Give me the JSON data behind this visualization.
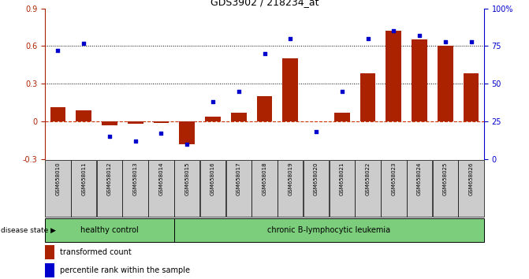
{
  "title": "GDS3902 / 218234_at",
  "samples": [
    "GSM658010",
    "GSM658011",
    "GSM658012",
    "GSM658013",
    "GSM658014",
    "GSM658015",
    "GSM658016",
    "GSM658017",
    "GSM658018",
    "GSM658019",
    "GSM658020",
    "GSM658021",
    "GSM658022",
    "GSM658023",
    "GSM658024",
    "GSM658025",
    "GSM658026"
  ],
  "bar_values": [
    0.11,
    0.09,
    -0.03,
    -0.02,
    -0.01,
    -0.18,
    0.04,
    0.07,
    0.2,
    0.5,
    0.0,
    0.07,
    0.38,
    0.72,
    0.65,
    0.6,
    0.38
  ],
  "dot_values": [
    0.72,
    0.77,
    0.15,
    0.12,
    0.17,
    0.1,
    0.38,
    0.45,
    0.7,
    0.8,
    0.18,
    0.45,
    0.8,
    0.85,
    0.82,
    0.78,
    0.78
  ],
  "bar_color": "#aa2200",
  "dot_color": "#0000cc",
  "bar_ylim": [
    -0.3,
    0.9
  ],
  "bar_yticks": [
    -0.3,
    0.0,
    0.3,
    0.6,
    0.9
  ],
  "dot_ytick_vals": [
    0.0,
    0.25,
    0.5,
    0.75,
    1.0
  ],
  "dot_yticklabels": [
    "0",
    "25",
    "50",
    "75",
    "100%"
  ],
  "group1_label": "healthy control",
  "group2_label": "chronic B-lymphocytic leukemia",
  "group1_count": 5,
  "legend_bar_label": "transformed count",
  "legend_dot_label": "percentile rank within the sample",
  "disease_state_label": "disease state",
  "hline_color": "#cc3300",
  "group1_bg": "#7CCD7C",
  "group2_bg": "#7CCD7C",
  "sample_bg": "#cccccc"
}
